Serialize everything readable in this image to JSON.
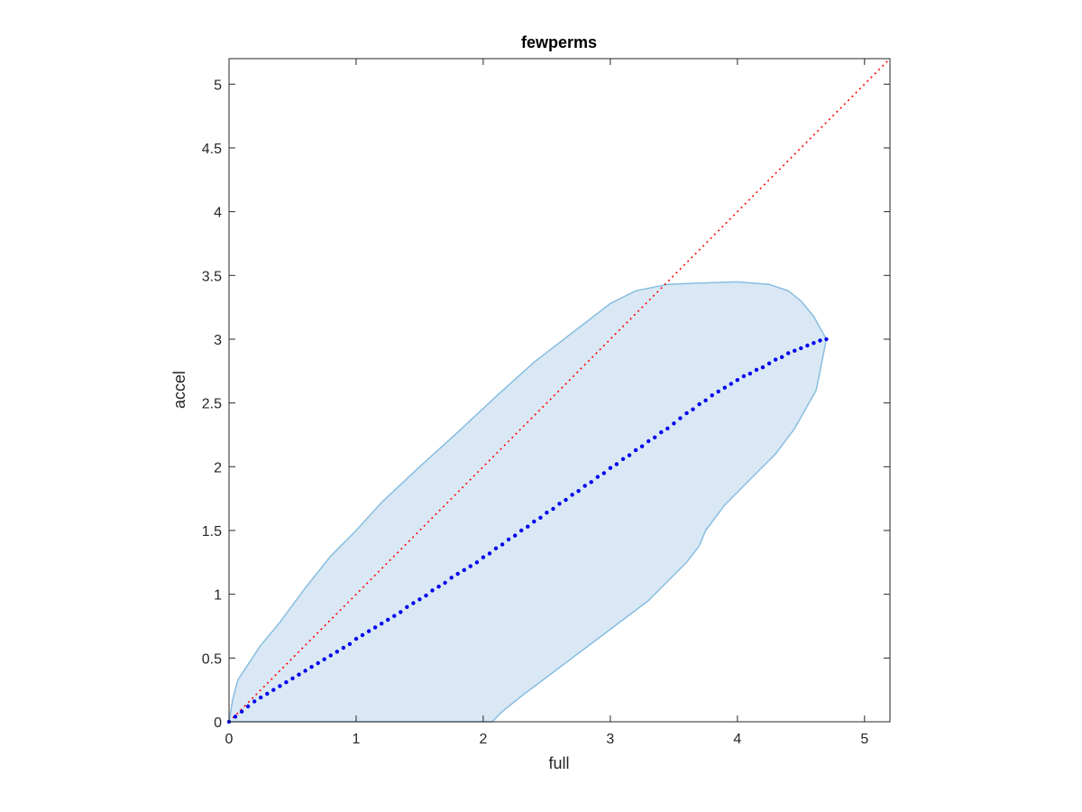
{
  "chart_data": {
    "type": "scatter",
    "title": "fewperms",
    "xlabel": "full",
    "ylabel": "accel",
    "xlim": [
      0,
      5.2
    ],
    "ylim": [
      0,
      5.2
    ],
    "xticks": [
      0,
      1,
      2,
      3,
      4,
      5
    ],
    "xtick_labels": [
      "0",
      "1",
      "2",
      "3",
      "4",
      "5"
    ],
    "yticks": [
      0,
      0.5,
      1,
      1.5,
      2,
      2.5,
      3,
      3.5,
      4,
      4.5,
      5
    ],
    "ytick_labels": [
      "0",
      "0.5",
      "1",
      "1.5",
      "2",
      "2.5",
      "3",
      "3.5",
      "4",
      "4.5",
      "5"
    ],
    "grid": false,
    "colors": {
      "band_fill": "#d9e8f4",
      "band_edge": "#88bde0",
      "points": "#0000ee",
      "diagonal": "#ff0000",
      "axes": "#262626"
    },
    "band": {
      "upper": [
        [
          0,
          0
        ],
        [
          0.03,
          0.18
        ],
        [
          0.07,
          0.33
        ],
        [
          0.15,
          0.45
        ],
        [
          0.25,
          0.6
        ],
        [
          0.4,
          0.78
        ],
        [
          0.6,
          1.05
        ],
        [
          0.8,
          1.3
        ],
        [
          1.0,
          1.5
        ],
        [
          1.2,
          1.72
        ],
        [
          1.5,
          2.0
        ],
        [
          1.8,
          2.27
        ],
        [
          2.1,
          2.55
        ],
        [
          2.4,
          2.82
        ],
        [
          2.7,
          3.05
        ],
        [
          3.0,
          3.28
        ],
        [
          3.2,
          3.38
        ],
        [
          3.45,
          3.43
        ],
        [
          3.7,
          3.44
        ],
        [
          4.0,
          3.45
        ],
        [
          4.25,
          3.43
        ],
        [
          4.4,
          3.38
        ],
        [
          4.5,
          3.3
        ],
        [
          4.6,
          3.18
        ],
        [
          4.7,
          3.0
        ]
      ],
      "lower": [
        [
          4.7,
          3.0
        ],
        [
          4.62,
          2.6
        ],
        [
          4.45,
          2.3
        ],
        [
          4.3,
          2.1
        ],
        [
          4.1,
          1.9
        ],
        [
          3.9,
          1.7
        ],
        [
          3.75,
          1.5
        ],
        [
          3.7,
          1.38
        ],
        [
          3.6,
          1.25
        ],
        [
          3.45,
          1.1
        ],
        [
          3.3,
          0.95
        ],
        [
          3.1,
          0.8
        ],
        [
          2.9,
          0.65
        ],
        [
          2.7,
          0.5
        ],
        [
          2.5,
          0.35
        ],
        [
          2.3,
          0.2
        ],
        [
          2.15,
          0.08
        ],
        [
          2.07,
          0.0
        ]
      ]
    },
    "points": {
      "x": [
        0,
        0.05,
        0.1,
        0.15,
        0.2,
        0.25,
        0.3,
        0.35,
        0.4,
        0.45,
        0.5,
        0.55,
        0.6,
        0.65,
        0.7,
        0.75,
        0.8,
        0.85,
        0.9,
        0.95,
        1.0,
        1.05,
        1.1,
        1.15,
        1.2,
        1.25,
        1.3,
        1.35,
        1.4,
        1.45,
        1.5,
        1.55,
        1.6,
        1.65,
        1.7,
        1.75,
        1.8,
        1.85,
        1.9,
        1.95,
        2.0,
        2.05,
        2.1,
        2.15,
        2.2,
        2.25,
        2.3,
        2.35,
        2.4,
        2.45,
        2.5,
        2.55,
        2.6,
        2.65,
        2.7,
        2.75,
        2.8,
        2.85,
        2.9,
        2.95,
        3.0,
        3.05,
        3.1,
        3.15,
        3.2,
        3.25,
        3.3,
        3.35,
        3.4,
        3.45,
        3.5,
        3.55,
        3.6,
        3.65,
        3.7,
        3.75,
        3.8,
        3.85,
        3.9,
        3.95,
        4.0,
        4.05,
        4.1,
        4.15,
        4.2,
        4.25,
        4.3,
        4.35,
        4.4,
        4.45,
        4.5,
        4.55,
        4.6,
        4.65,
        4.7
      ],
      "y": [
        0,
        0.04,
        0.08,
        0.12,
        0.16,
        0.19,
        0.22,
        0.25,
        0.28,
        0.31,
        0.34,
        0.37,
        0.4,
        0.43,
        0.46,
        0.49,
        0.52,
        0.55,
        0.58,
        0.61,
        0.65,
        0.68,
        0.71,
        0.74,
        0.77,
        0.8,
        0.83,
        0.86,
        0.9,
        0.93,
        0.96,
        0.99,
        1.03,
        1.06,
        1.09,
        1.13,
        1.16,
        1.19,
        1.22,
        1.25,
        1.29,
        1.32,
        1.36,
        1.39,
        1.43,
        1.46,
        1.5,
        1.53,
        1.57,
        1.6,
        1.64,
        1.67,
        1.71,
        1.74,
        1.78,
        1.81,
        1.85,
        1.88,
        1.92,
        1.95,
        1.99,
        2.02,
        2.06,
        2.09,
        2.13,
        2.16,
        2.2,
        2.23,
        2.27,
        2.3,
        2.34,
        2.38,
        2.42,
        2.45,
        2.49,
        2.52,
        2.56,
        2.59,
        2.62,
        2.65,
        2.68,
        2.71,
        2.73,
        2.76,
        2.78,
        2.81,
        2.84,
        2.86,
        2.89,
        2.91,
        2.93,
        2.95,
        2.97,
        2.99,
        3.0
      ]
    }
  }
}
